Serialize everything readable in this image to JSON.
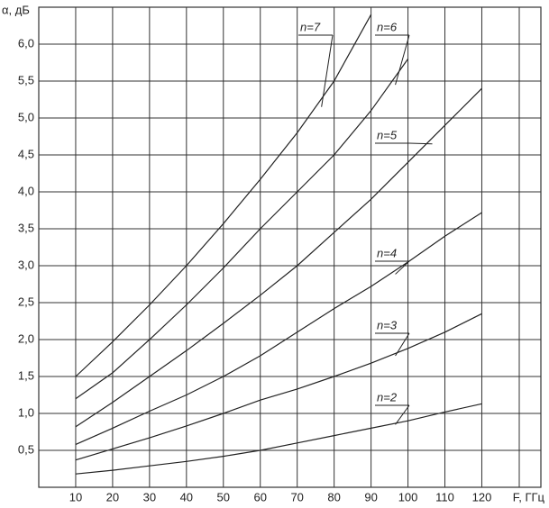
{
  "chart_data": {
    "type": "line",
    "y_label": "α, дБ",
    "x_label": "F, ГГц",
    "x": [
      10,
      20,
      30,
      40,
      50,
      60,
      70,
      80,
      90,
      100,
      110,
      120
    ],
    "series": [
      {
        "name": "n=7",
        "color": "#222222",
        "values": [
          1.5,
          1.97,
          2.47,
          3.0,
          3.57,
          4.17,
          4.8,
          5.5,
          6.4,
          null,
          null,
          null
        ]
      },
      {
        "name": "n=6",
        "color": "#222222",
        "values": [
          1.2,
          1.55,
          2.0,
          2.47,
          2.97,
          3.5,
          4.0,
          4.5,
          5.1,
          5.8,
          null,
          null
        ]
      },
      {
        "name": "n=5",
        "color": "#222222",
        "values": [
          0.82,
          1.15,
          1.5,
          1.85,
          2.22,
          2.6,
          3.0,
          3.45,
          3.9,
          4.4,
          4.9,
          5.4
        ]
      },
      {
        "name": "n=4",
        "color": "#222222",
        "values": [
          0.58,
          0.8,
          1.03,
          1.25,
          1.5,
          1.78,
          2.1,
          2.42,
          2.72,
          3.05,
          3.4,
          3.72
        ]
      },
      {
        "name": "n=3",
        "color": "#222222",
        "values": [
          0.37,
          0.52,
          0.67,
          0.83,
          1.0,
          1.18,
          1.33,
          1.5,
          1.68,
          1.88,
          2.1,
          2.35
        ]
      },
      {
        "name": "n=2",
        "color": "#222222",
        "values": [
          0.18,
          0.23,
          0.29,
          0.35,
          0.42,
          0.5,
          0.6,
          0.7,
          0.8,
          0.9,
          1.02,
          1.13
        ]
      }
    ],
    "xlim": [
      0,
      136
    ],
    "ylim": [
      0,
      6.5
    ],
    "xticks": [
      10,
      20,
      30,
      40,
      50,
      60,
      70,
      80,
      90,
      100,
      110,
      120
    ],
    "yticks": [
      {
        "value": 0.5,
        "label": "0,5"
      },
      {
        "value": 1.0,
        "label": "1,0"
      },
      {
        "value": 1.5,
        "label": "1,5"
      },
      {
        "value": 2.0,
        "label": "2,0"
      },
      {
        "value": 2.5,
        "label": "2,5"
      },
      {
        "value": 3.0,
        "label": "3,0"
      },
      {
        "value": 3.5,
        "label": "3,5"
      },
      {
        "value": 4.0,
        "label": "4,0"
      },
      {
        "value": 4.5,
        "label": "4,5"
      },
      {
        "value": 5.0,
        "label": "5,0"
      },
      {
        "value": 5.5,
        "label": "5,5"
      },
      {
        "value": 6.0,
        "label": "6,0"
      }
    ],
    "grid": true
  }
}
